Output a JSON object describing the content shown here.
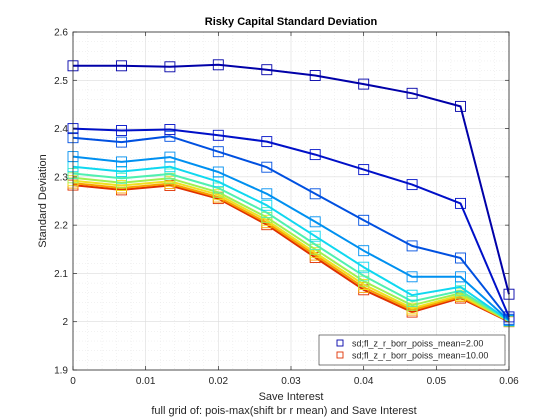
{
  "chart_data": {
    "type": "line",
    "title": "Risky Capital Standard Deviation",
    "xlabel": "Save Interest",
    "ylabel": "Standard Deviation",
    "caption": "full grid of: pois-max(shift br r mean) and Save Interest",
    "xlim": [
      0,
      0.06
    ],
    "ylim": [
      1.9,
      2.6
    ],
    "xticks": [
      0,
      0.01,
      0.02,
      0.03,
      0.04,
      0.05,
      0.06
    ],
    "xtick_labels": [
      "0",
      "0.01",
      "0.02",
      "0.03",
      "0.04",
      "0.05",
      "0.06"
    ],
    "yticks": [
      1.9,
      2.0,
      2.1,
      2.2,
      2.3,
      2.4,
      2.5,
      2.6
    ],
    "ytick_labels": [
      "1.9",
      "2",
      "2.1",
      "2.2",
      "2.3",
      "2.4",
      "2.5",
      "2.6"
    ],
    "grid": true,
    "minor_grid": true,
    "legend_position": "bottom-right",
    "x": [
      0,
      0.00667,
      0.01333,
      0.02,
      0.02667,
      0.03333,
      0.04,
      0.04667,
      0.05333,
      0.06
    ],
    "series": [
      {
        "name": "sd;fl_z_r_borr_poiss_mean=2.00",
        "color": "#0000a8",
        "marker": "square",
        "values": [
          2.53,
          2.53,
          2.528,
          2.532,
          2.522,
          2.51,
          2.492,
          2.473,
          2.446,
          2.057
        ]
      },
      {
        "name": "",
        "color": "#0010c8",
        "marker": "square",
        "values": [
          2.4,
          2.396,
          2.398,
          2.386,
          2.373,
          2.346,
          2.315,
          2.284,
          2.245,
          2.01
        ]
      },
      {
        "name": "",
        "color": "#0050e0",
        "marker": "square",
        "values": [
          2.381,
          2.372,
          2.384,
          2.352,
          2.32,
          2.265,
          2.21,
          2.157,
          2.132,
          2.005
        ]
      },
      {
        "name": "",
        "color": "#0090f0",
        "marker": "square",
        "values": [
          2.342,
          2.331,
          2.341,
          2.31,
          2.265,
          2.207,
          2.147,
          2.093,
          2.093,
          2.003
        ]
      },
      {
        "name": "",
        "color": "#10d8f0",
        "marker": "square",
        "values": [
          2.321,
          2.311,
          2.321,
          2.29,
          2.241,
          2.177,
          2.113,
          2.055,
          2.072,
          2.002
        ]
      },
      {
        "name": "",
        "color": "#50f0b0",
        "marker": "square",
        "values": [
          2.307,
          2.297,
          2.306,
          2.277,
          2.226,
          2.16,
          2.095,
          2.042,
          2.064,
          2.002
        ]
      },
      {
        "name": "",
        "color": "#a0f050",
        "marker": "square",
        "values": [
          2.298,
          2.288,
          2.297,
          2.268,
          2.216,
          2.15,
          2.084,
          2.034,
          2.059,
          2.001
        ]
      },
      {
        "name": "",
        "color": "#f0e020",
        "marker": "square",
        "values": [
          2.292,
          2.282,
          2.291,
          2.263,
          2.21,
          2.143,
          2.077,
          2.028,
          2.055,
          2.001
        ]
      },
      {
        "name": "",
        "color": "#f8a000",
        "marker": "square",
        "values": [
          2.287,
          2.277,
          2.286,
          2.258,
          2.205,
          2.138,
          2.071,
          2.024,
          2.052,
          2.001
        ]
      },
      {
        "name": "sd;fl_z_r_borr_poiss_mean=10.00",
        "color": "#e03000",
        "marker": "square",
        "values": [
          2.283,
          2.273,
          2.282,
          2.255,
          2.201,
          2.133,
          2.066,
          2.02,
          2.049,
          2.0
        ]
      }
    ],
    "legend_entries": [
      0,
      9
    ]
  }
}
